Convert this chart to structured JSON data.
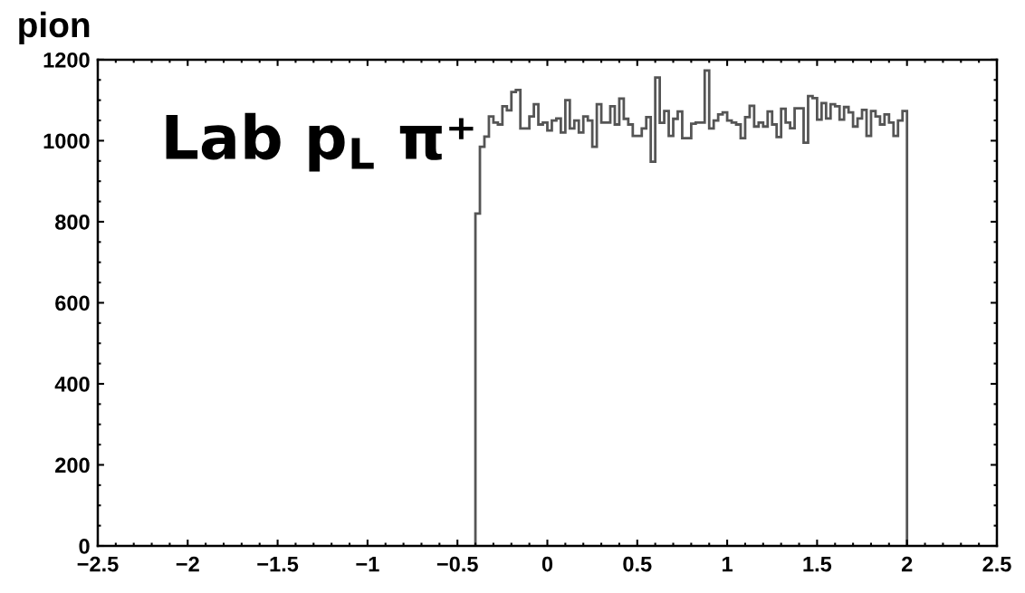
{
  "chart_data": {
    "type": "histogram",
    "title": "pion",
    "annotations": [
      "Lab p$_{L}$ π⁺"
    ],
    "bins": [
      -0.4,
      -0.375,
      -0.35,
      -0.325,
      -0.3,
      -0.275,
      -0.25,
      -0.225,
      -0.2,
      -0.175,
      -0.15,
      -0.125,
      -0.1,
      -0.075,
      -0.05,
      -0.025,
      0,
      0.025,
      0.05,
      0.075,
      0.1,
      0.125,
      0.15,
      0.175,
      0.2,
      0.225,
      0.25,
      0.275,
      0.3,
      0.325,
      0.35,
      0.375,
      0.4,
      0.425,
      0.45,
      0.475,
      0.5,
      0.525,
      0.55,
      0.575,
      0.6,
      0.625,
      0.65,
      0.675,
      0.7,
      0.725,
      0.75,
      0.775,
      0.8,
      0.825,
      0.85,
      0.875,
      0.9,
      0.925,
      0.95,
      0.975,
      1.0,
      1.025,
      1.05,
      1.075,
      1.1,
      1.125,
      1.15,
      1.175,
      1.2,
      1.225,
      1.25,
      1.275,
      1.3,
      1.325,
      1.35,
      1.375,
      1.4,
      1.425,
      1.45,
      1.475,
      1.5,
      1.525,
      1.55,
      1.575,
      1.6,
      1.625,
      1.65,
      1.675,
      1.7,
      1.725,
      1.75,
      1.775,
      1.8,
      1.825,
      1.85,
      1.875,
      1.9,
      1.925,
      1.95,
      1.975,
      2.0
    ],
    "values": [
      820,
      985,
      1010,
      1060,
      1045,
      1040,
      1085,
      1075,
      1120,
      1125,
      1030,
      1030,
      1060,
      1090,
      1040,
      1045,
      1025,
      1050,
      1055,
      1020,
      1100,
      1030,
      1050,
      1020,
      1060,
      1050,
      985,
      1090,
      1045,
      1045,
      1085,
      1040,
      1104,
      1054,
      1040,
      1012,
      1012,
      1030,
      1058,
      948,
      1156,
      1044,
      1073,
      1012,
      1054,
      1072,
      1006,
      1006,
      1042,
      1045,
      1045,
      1173,
      1030,
      1050,
      1065,
      1070,
      1050,
      1045,
      1040,
      1006,
      1058,
      1086,
      1035,
      1045,
      1035,
      1072,
      1040,
      1009,
      1079,
      1045,
      1031,
      1080,
      1080,
      995,
      1110,
      1105,
      1052,
      1093,
      1055,
      1090,
      1085,
      1052,
      1083,
      1070,
      1035,
      1055,
      1076,
      1012,
      1073,
      1060,
      1040,
      1065,
      1045,
      1012,
      1050,
      1073
    ],
    "color": "#555555",
    "xlim": [
      -2.5,
      2.5
    ],
    "xticks": [
      {
        "value": -2.5,
        "label": "−2.5"
      },
      {
        "value": -2,
        "label": "−2"
      },
      {
        "value": -1.5,
        "label": "−1.5"
      },
      {
        "value": -1,
        "label": "−1"
      },
      {
        "value": -0.5,
        "label": "−0.5"
      },
      0,
      0.5,
      1,
      1.5,
      2,
      2.5
    ],
    "ylim": [
      0,
      1200
    ],
    "yticks": [
      0,
      200,
      400,
      600,
      800,
      1000,
      1200
    ],
    "grid": false,
    "legend": false
  }
}
